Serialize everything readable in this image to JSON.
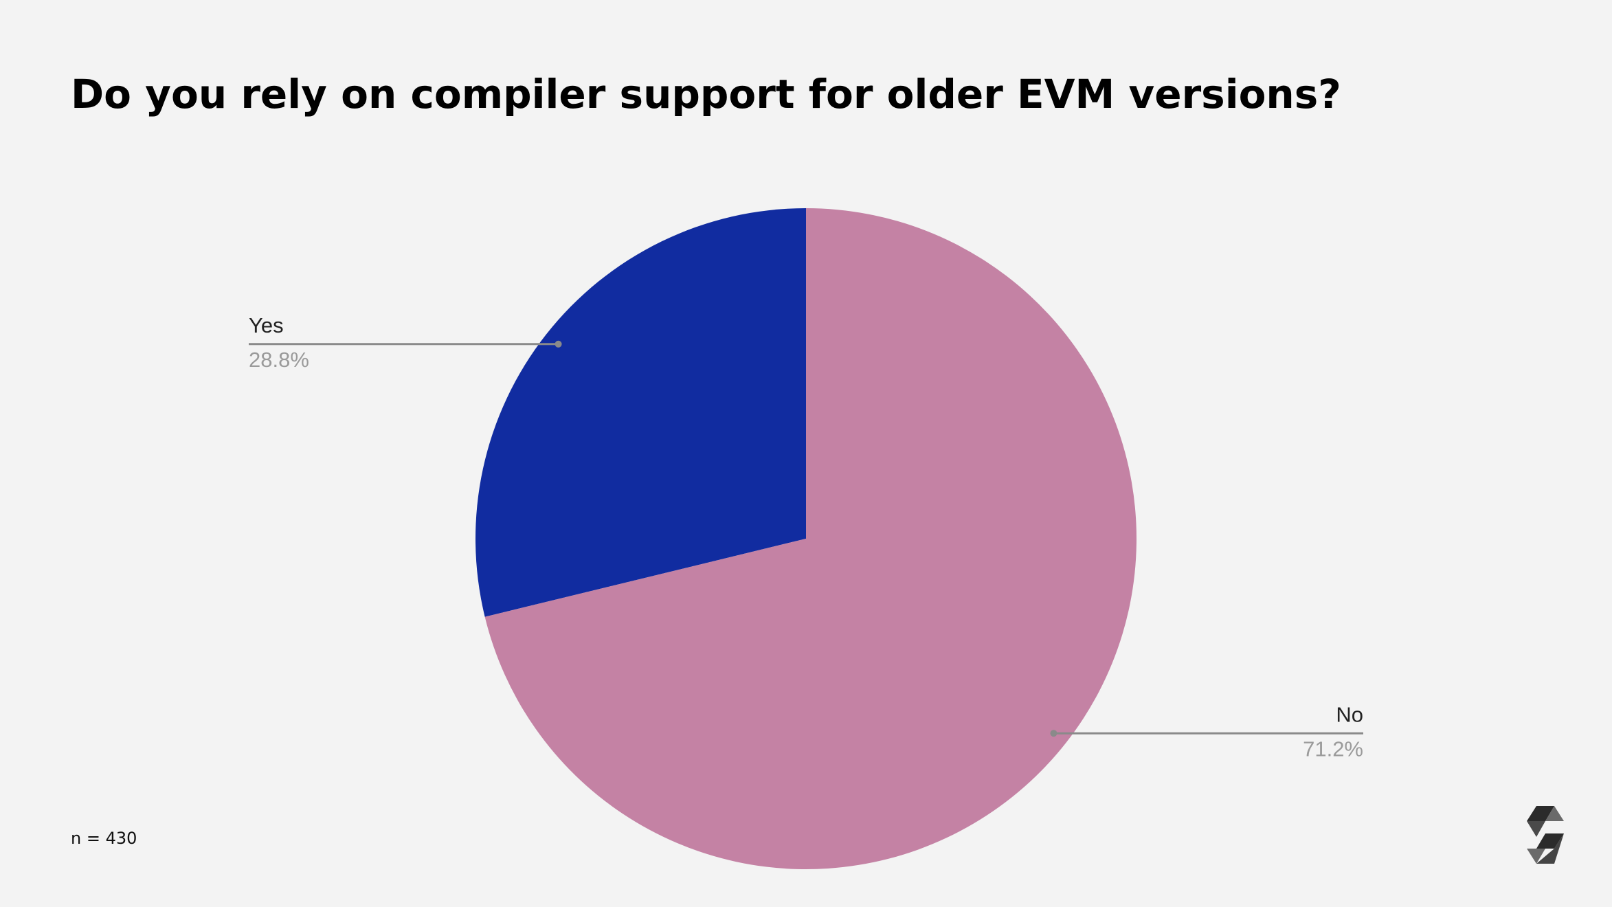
{
  "chart_data": {
    "type": "pie",
    "title": "Do you rely on compiler support for older EVM versions?",
    "annotation": "n = 430",
    "categories": [
      "Yes",
      "No"
    ],
    "values": [
      28.8,
      71.2
    ],
    "value_labels": [
      "28.8%",
      "71.2%"
    ],
    "colors": [
      "#112ca0",
      "#c482a4"
    ]
  }
}
